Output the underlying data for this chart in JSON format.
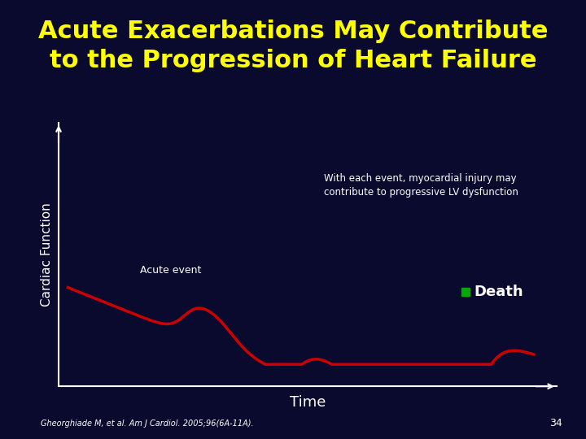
{
  "title_line1": "Acute Exacerbations May Contribute",
  "title_line2": "to the Progression of Heart Failure",
  "title_color": "#FFFF00",
  "title_fontsize": 22,
  "bg_color": "#0a0a2e",
  "separator_color": "#cc0000",
  "ylabel": "Cardiac Function",
  "xlabel": "Time",
  "annotation1": "With each event, myocardial injury may\ncontribute to progressive LV dysfunction",
  "annotation2": "Acute event",
  "death_label": "Death",
  "citation": "Gheorghiade M, et al. Am J Cardiol. 2005;96(6A-11A).",
  "page_number": "34",
  "curve_color": "#cc0000",
  "death_marker_color": "#00aa00",
  "axis_color": "#ffffff",
  "text_color": "#ffffff"
}
